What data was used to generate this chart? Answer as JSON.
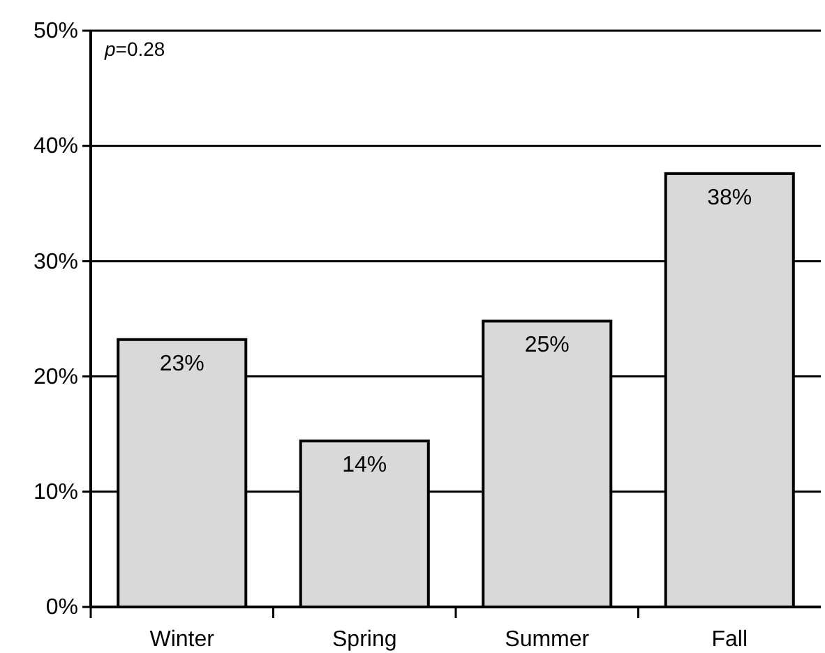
{
  "chart_data": {
    "type": "bar",
    "categories": [
      "Winter",
      "Spring",
      "Summer",
      "Fall"
    ],
    "values": [
      23.2,
      14.4,
      24.8,
      37.6
    ],
    "value_labels": [
      "23%",
      "14%",
      "25%",
      "38%"
    ],
    "color": "#d9d9d9",
    "ylim": [
      0,
      50
    ],
    "yticks": [
      {
        "value": 0,
        "label": "0%"
      },
      {
        "value": 10,
        "label": "10%"
      },
      {
        "value": 20,
        "label": "20%"
      },
      {
        "value": 30,
        "label": "30%"
      },
      {
        "value": 40,
        "label": "40%"
      },
      {
        "value": 50,
        "label": "50%"
      }
    ],
    "grid": "y",
    "annotations": [
      "p=0.28"
    ]
  }
}
